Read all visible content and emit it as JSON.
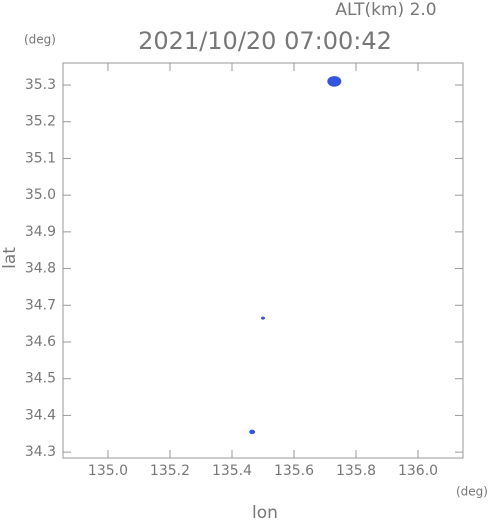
{
  "chart_data": {
    "type": "scatter",
    "title": "2021/10/20 07:00:42",
    "subtitle": "ALT(km) 2.0",
    "y_unit": "(deg)",
    "x_unit": "(deg)",
    "xlabel": "lon",
    "ylabel": "lat",
    "x": [
      135.73,
      135.5,
      135.465
    ],
    "y": [
      35.31,
      34.665,
      34.355
    ],
    "sizes": [
      7,
      2,
      3
    ],
    "color": "#3355dd",
    "xlim": [
      134.855,
      136.145
    ],
    "ylim": [
      34.284,
      35.36
    ],
    "xticks": [
      {
        "value": 135,
        "label": "135.0"
      },
      135.2,
      135.4,
      135.6,
      135.8,
      {
        "value": 136,
        "label": "136.0"
      }
    ],
    "yticks": [
      34.3,
      34.4,
      34.5,
      34.6,
      34.7,
      34.8,
      34.9,
      {
        "value": 35,
        "label": "35.0"
      },
      35.1,
      35.2,
      35.3
    ]
  }
}
